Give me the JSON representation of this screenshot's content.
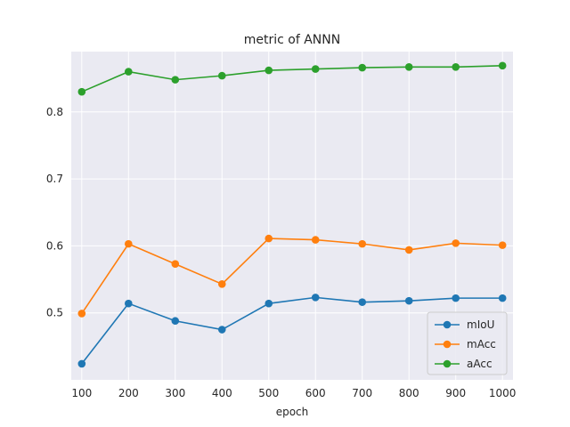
{
  "chart_data": {
    "type": "line",
    "title": "metric of ANNN",
    "xlabel": "epoch",
    "ylabel": "",
    "x": [
      100,
      200,
      300,
      400,
      500,
      600,
      700,
      800,
      900,
      1000
    ],
    "x_ticks": [
      "100",
      "200",
      "300",
      "400",
      "500",
      "600",
      "700",
      "800",
      "900",
      "1000"
    ],
    "y_ticks": [
      "0.5",
      "0.6",
      "0.7",
      "0.8"
    ],
    "y_tick_values": [
      0.5,
      0.6,
      0.7,
      0.8
    ],
    "ylim": [
      0.4,
      0.89
    ],
    "grid": true,
    "legend_position": "lower-right",
    "series": [
      {
        "name": "mIoU",
        "color": "#1f77b4",
        "values": [
          0.424,
          0.514,
          0.488,
          0.475,
          0.514,
          0.523,
          0.516,
          0.518,
          0.522,
          0.522
        ]
      },
      {
        "name": "mAcc",
        "color": "#ff7f0e",
        "values": [
          0.499,
          0.603,
          0.573,
          0.543,
          0.611,
          0.609,
          0.603,
          0.594,
          0.604,
          0.601
        ]
      },
      {
        "name": "aAcc",
        "color": "#2ca02c",
        "values": [
          0.83,
          0.86,
          0.848,
          0.854,
          0.862,
          0.864,
          0.866,
          0.867,
          0.867,
          0.869
        ]
      }
    ]
  }
}
